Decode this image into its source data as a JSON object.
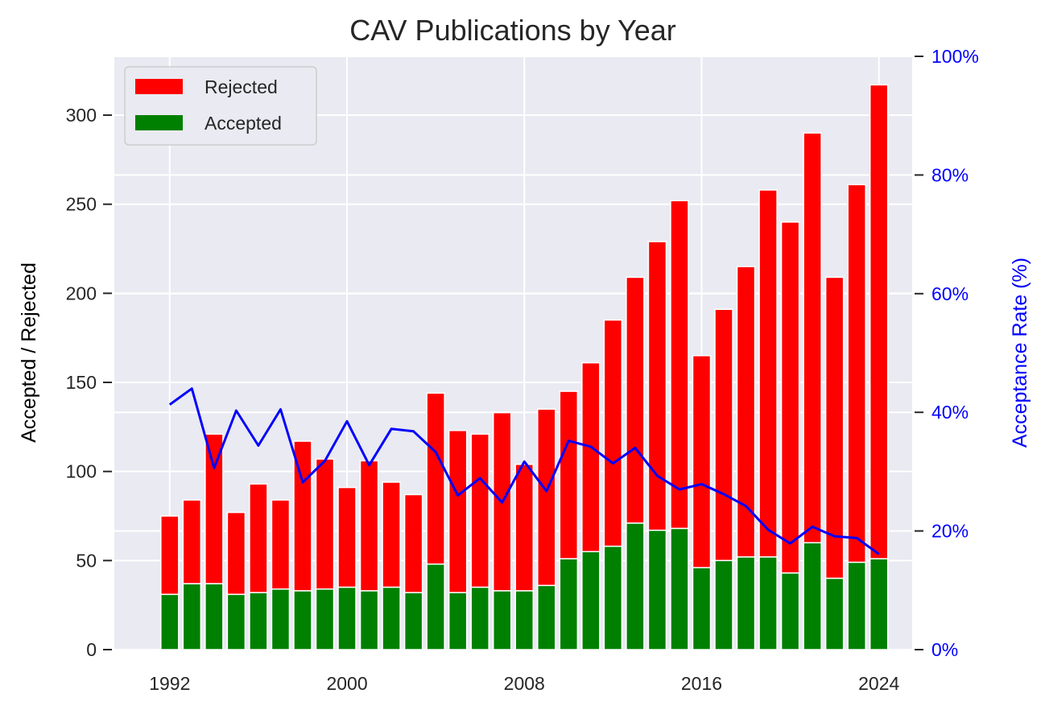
{
  "chart_data": {
    "type": "bar",
    "title": "CAV Publications by Year",
    "ylabel": "Accepted / Rejected",
    "y2label": "Acceptance Rate (%)",
    "ylim": [
      0,
      333
    ],
    "y2lim": [
      0,
      100
    ],
    "xlim": [
      1989.5,
      2025.5
    ],
    "yticks": [
      0,
      50,
      100,
      150,
      200,
      250,
      300
    ],
    "y2ticks": [
      0,
      20,
      40,
      60,
      80,
      100
    ],
    "y2tick_labels": [
      "0%",
      "20%",
      "40%",
      "60%",
      "80%",
      "100%"
    ],
    "xticks": [
      1992,
      2000,
      2008,
      2016,
      2024
    ],
    "xtick_labels": [
      "1992",
      "2000",
      "2008",
      "2016",
      "2024"
    ],
    "grid": true,
    "legend_position": "top-left",
    "years": [
      1992,
      1993,
      1994,
      1995,
      1996,
      1997,
      1998,
      1999,
      2000,
      2001,
      2002,
      2003,
      2004,
      2005,
      2006,
      2007,
      2008,
      2009,
      2010,
      2011,
      2012,
      2013,
      2014,
      2015,
      2016,
      2017,
      2018,
      2019,
      2020,
      2021,
      2022,
      2023,
      2024
    ],
    "series": [
      {
        "name": "Rejected",
        "color": "#ff0000",
        "stacked_on": "Accepted",
        "total_values": [
          75,
          84,
          121,
          77,
          93,
          84,
          117,
          107,
          91,
          106,
          94,
          87,
          144,
          123,
          121,
          133,
          104,
          135,
          145,
          161,
          185,
          209,
          229,
          252,
          165,
          191,
          215,
          258,
          240,
          290,
          209,
          261,
          317
        ]
      },
      {
        "name": "Accepted",
        "color": "#008000",
        "values": [
          31,
          37,
          37,
          31,
          32,
          34,
          33,
          34,
          35,
          33,
          35,
          32,
          48,
          32,
          35,
          33,
          33,
          36,
          51,
          55,
          58,
          71,
          67,
          68,
          46,
          50,
          52,
          52,
          43,
          60,
          40,
          49,
          51
        ]
      },
      {
        "name": "Acceptance Rate (%)",
        "axis": "right",
        "color": "#0000ff",
        "values": [
          41.3,
          44.0,
          30.6,
          40.3,
          34.4,
          40.5,
          28.2,
          31.8,
          38.5,
          31.1,
          37.2,
          36.8,
          33.3,
          26.0,
          28.9,
          24.8,
          31.7,
          26.7,
          35.2,
          34.2,
          31.4,
          34.0,
          29.3,
          27.0,
          27.9,
          26.2,
          24.2,
          20.2,
          17.9,
          20.7,
          19.1,
          18.8,
          16.1
        ]
      }
    ]
  }
}
